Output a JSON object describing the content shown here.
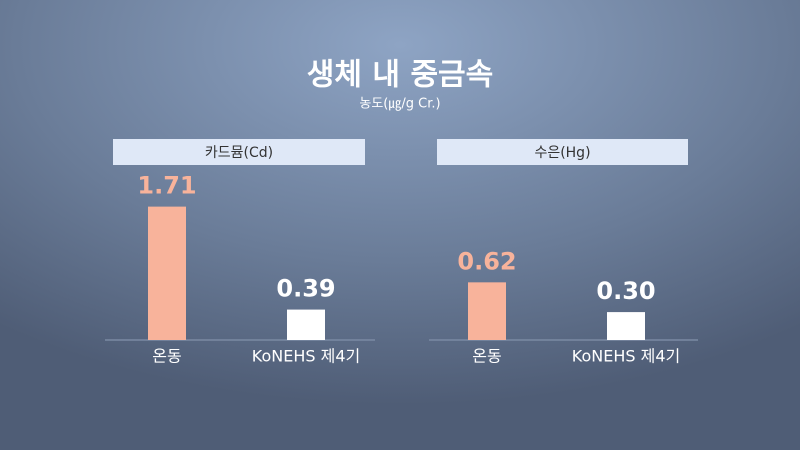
{
  "header": {
    "title": "생체 내 중금속",
    "subtitle": "농도(㎍/g Cr.)"
  },
  "chart_data": [
    {
      "type": "bar",
      "title": "카드뮴(Cd)",
      "categories": [
        "온동",
        "KoNEHS 제4기"
      ],
      "values": [
        1.71,
        0.39
      ],
      "value_labels": [
        "1.71",
        "0.39"
      ],
      "colors": [
        "#f8b39b",
        "#ffffff"
      ]
    },
    {
      "type": "bar",
      "title": "수은(Hg)",
      "categories": [
        "온동",
        "KoNEHS 제4기"
      ],
      "values": [
        0.62,
        0.3
      ],
      "value_labels": [
        "0.62",
        "0.30"
      ],
      "colors": [
        "#f8b39b",
        "#ffffff"
      ]
    }
  ]
}
